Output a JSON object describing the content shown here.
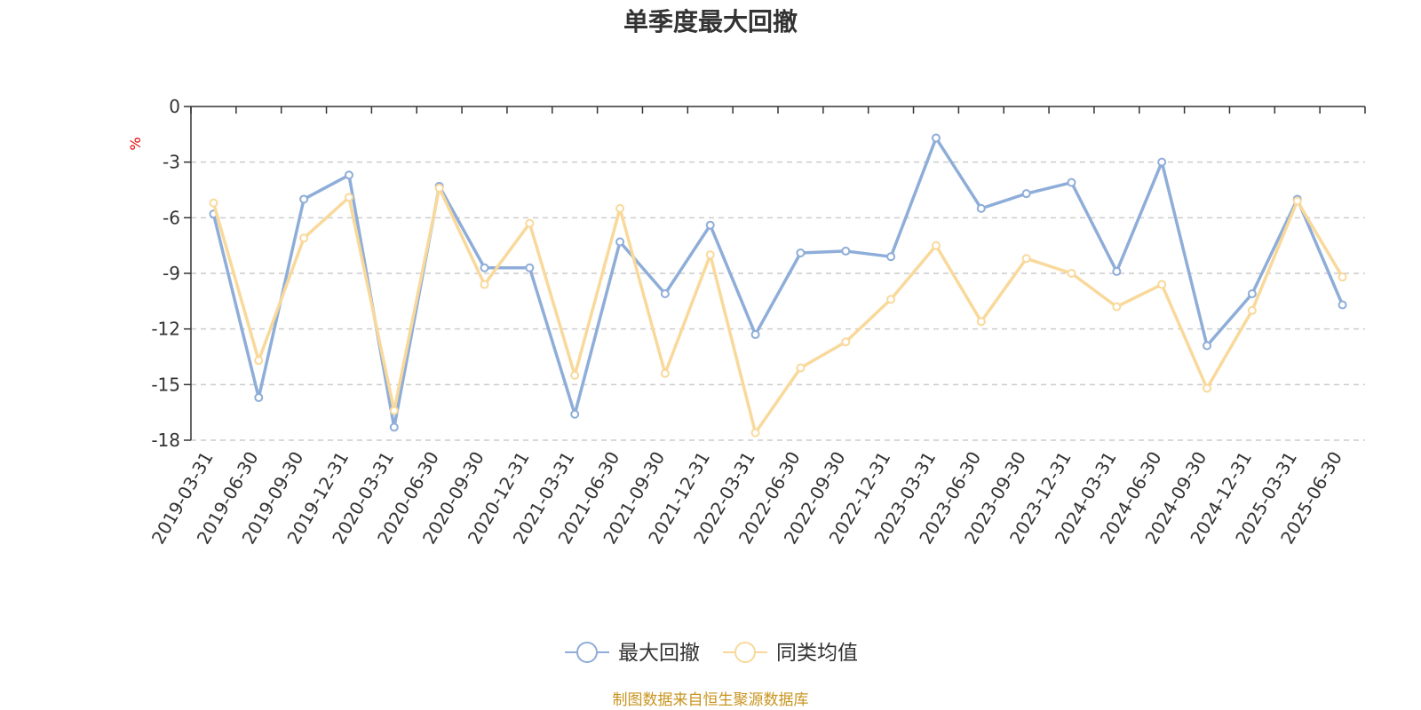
{
  "chart_data": {
    "type": "line",
    "title": "单季度最大回撤",
    "ylabel": "%",
    "xlabel": "",
    "ylim": [
      -18,
      0
    ],
    "yticks": [
      0,
      -3,
      -6,
      -9,
      -12,
      -15,
      -18
    ],
    "grid": true,
    "legend_position": "bottom-center",
    "categories": [
      "2019-03-31",
      "2019-06-30",
      "2019-09-30",
      "2019-12-31",
      "2020-03-31",
      "2020-06-30",
      "2020-09-30",
      "2020-12-31",
      "2021-03-31",
      "2021-06-30",
      "2021-09-30",
      "2021-12-31",
      "2022-03-31",
      "2022-06-30",
      "2022-09-30",
      "2022-12-31",
      "2023-03-31",
      "2023-06-30",
      "2023-09-30",
      "2023-12-31",
      "2024-03-31",
      "2024-06-30",
      "2024-09-30",
      "2024-12-31",
      "2025-03-31",
      "2025-06-30"
    ],
    "series": [
      {
        "name": "最大回撤",
        "color": "#8eadd8",
        "values": [
          -5.8,
          -15.7,
          -5.0,
          -3.7,
          -17.3,
          -4.3,
          -8.7,
          -8.7,
          -16.6,
          -7.3,
          -10.1,
          -6.4,
          -12.3,
          -7.9,
          -7.8,
          -8.1,
          -1.7,
          -5.5,
          -4.7,
          -4.1,
          -8.9,
          -3.0,
          -12.9,
          -10.1,
          -5.0,
          -10.7
        ]
      },
      {
        "name": "同类均值",
        "color": "#f9d99b",
        "values": [
          -5.2,
          -13.7,
          -7.1,
          -4.9,
          -16.4,
          -4.4,
          -9.6,
          -6.3,
          -14.5,
          -5.5,
          -14.4,
          -8.0,
          -17.6,
          -14.1,
          -12.7,
          -10.4,
          -7.5,
          -11.6,
          -8.2,
          -9.0,
          -10.8,
          -9.6,
          -15.2,
          -11.0,
          -5.1,
          -9.2
        ]
      }
    ]
  },
  "footer": {
    "source": "制图数据来自恒生聚源数据库"
  }
}
